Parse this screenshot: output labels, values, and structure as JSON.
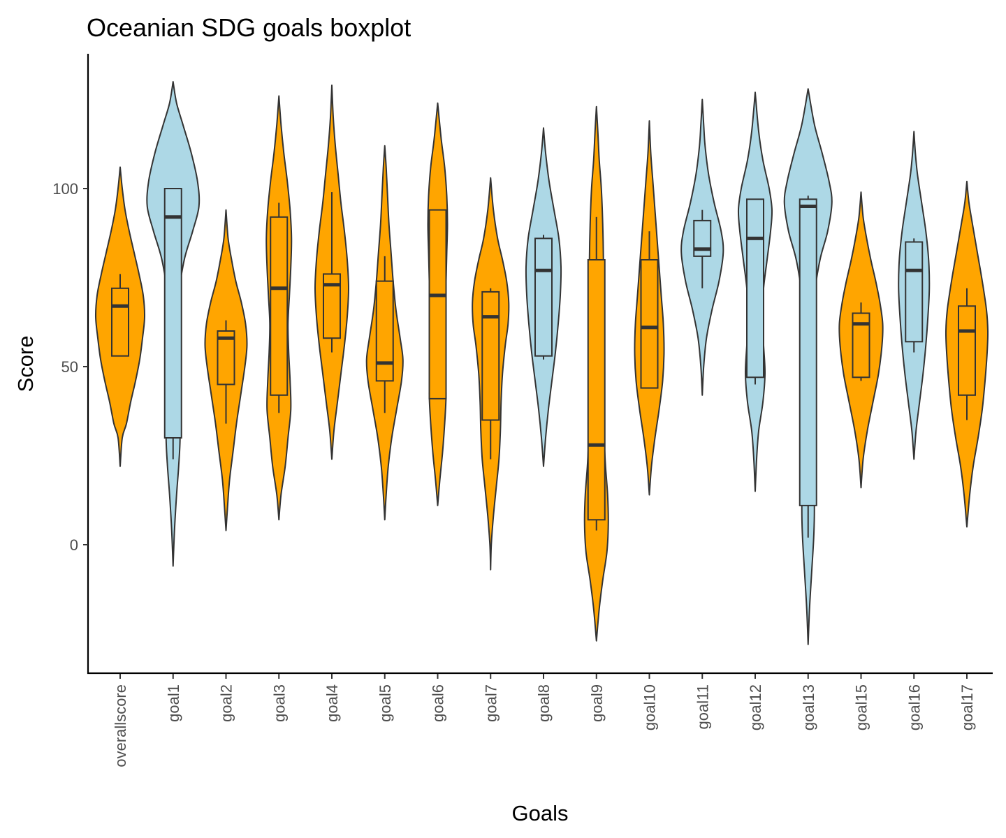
{
  "chart_data": {
    "type": "violin",
    "title": "Oceanian SDG goals boxplot",
    "xlabel": "Goals",
    "ylabel": "Score",
    "yticks": [
      0,
      50,
      100
    ],
    "ylim": [
      -35,
      138
    ],
    "colors": {
      "orange": "#FFA500",
      "lightblue": "#ADD8E6",
      "outline": "#333333"
    },
    "categories": [
      {
        "name": "overallscore",
        "color": "orange",
        "violin_range": [
          22,
          106
        ],
        "density": [
          [
            22,
            0
          ],
          [
            30,
            3
          ],
          [
            34,
            9
          ],
          [
            40,
            15
          ],
          [
            46,
            22
          ],
          [
            52,
            28
          ],
          [
            58,
            32
          ],
          [
            64,
            35
          ],
          [
            70,
            33
          ],
          [
            76,
            27
          ],
          [
            82,
            20
          ],
          [
            88,
            13
          ],
          [
            94,
            7
          ],
          [
            100,
            3
          ],
          [
            106,
            0
          ]
        ],
        "box": {
          "q1": 53,
          "median": 67,
          "q3": 72,
          "whisker_low": 53,
          "whisker_high": 76
        }
      },
      {
        "name": "goal1",
        "color": "lightblue",
        "violin_range": [
          -6,
          130
        ],
        "density": [
          [
            -6,
            0
          ],
          [
            4,
            2
          ],
          [
            14,
            5
          ],
          [
            22,
            8
          ],
          [
            30,
            10
          ],
          [
            40,
            9
          ],
          [
            50,
            7
          ],
          [
            60,
            6
          ],
          [
            70,
            8
          ],
          [
            80,
            16
          ],
          [
            88,
            28
          ],
          [
            95,
            37
          ],
          [
            102,
            35
          ],
          [
            110,
            26
          ],
          [
            118,
            14
          ],
          [
            124,
            5
          ],
          [
            130,
            0
          ]
        ],
        "box": {
          "q1": 30,
          "median": 92,
          "q3": 100,
          "whisker_low": 24,
          "whisker_high": 100
        }
      },
      {
        "name": "goal2",
        "color": "orange",
        "violin_range": [
          4,
          94
        ],
        "density": [
          [
            4,
            0
          ],
          [
            10,
            2
          ],
          [
            18,
            5
          ],
          [
            26,
            10
          ],
          [
            34,
            15
          ],
          [
            42,
            21
          ],
          [
            50,
            27
          ],
          [
            56,
            30
          ],
          [
            62,
            28
          ],
          [
            68,
            22
          ],
          [
            74,
            14
          ],
          [
            80,
            8
          ],
          [
            86,
            3
          ],
          [
            94,
            0
          ]
        ],
        "box": {
          "q1": 45,
          "median": 58,
          "q3": 60,
          "whisker_low": 34,
          "whisker_high": 63
        }
      },
      {
        "name": "goal3",
        "color": "orange",
        "violin_range": [
          7,
          126
        ],
        "density": [
          [
            7,
            0
          ],
          [
            14,
            3
          ],
          [
            22,
            9
          ],
          [
            30,
            13
          ],
          [
            38,
            17
          ],
          [
            46,
            16
          ],
          [
            54,
            14
          ],
          [
            62,
            13
          ],
          [
            70,
            15
          ],
          [
            78,
            17
          ],
          [
            86,
            18
          ],
          [
            94,
            16
          ],
          [
            102,
            12
          ],
          [
            110,
            7
          ],
          [
            118,
            3
          ],
          [
            126,
            0
          ]
        ],
        "box": {
          "q1": 42,
          "median": 72,
          "q3": 92,
          "whisker_low": 37,
          "whisker_high": 96
        }
      },
      {
        "name": "goal4",
        "color": "orange",
        "violin_range": [
          24,
          129
        ],
        "density": [
          [
            24,
            0
          ],
          [
            32,
            3
          ],
          [
            40,
            8
          ],
          [
            48,
            13
          ],
          [
            56,
            18
          ],
          [
            64,
            22
          ],
          [
            72,
            24
          ],
          [
            80,
            22
          ],
          [
            88,
            18
          ],
          [
            96,
            13
          ],
          [
            104,
            9
          ],
          [
            112,
            5
          ],
          [
            120,
            2
          ],
          [
            129,
            0
          ]
        ],
        "box": {
          "q1": 58,
          "median": 73,
          "q3": 76,
          "whisker_low": 54,
          "whisker_high": 99
        }
      },
      {
        "name": "goal5",
        "color": "orange",
        "violin_range": [
          7,
          112
        ],
        "density": [
          [
            7,
            0
          ],
          [
            14,
            2
          ],
          [
            22,
            5
          ],
          [
            30,
            10
          ],
          [
            38,
            17
          ],
          [
            46,
            24
          ],
          [
            52,
            26
          ],
          [
            58,
            22
          ],
          [
            66,
            16
          ],
          [
            74,
            12
          ],
          [
            82,
            9
          ],
          [
            90,
            6
          ],
          [
            98,
            4
          ],
          [
            106,
            2
          ],
          [
            112,
            0
          ]
        ],
        "box": {
          "q1": 46,
          "median": 51,
          "q3": 74,
          "whisker_low": 37,
          "whisker_high": 81
        }
      },
      {
        "name": "goal6",
        "color": "orange",
        "violin_range": [
          11,
          124
        ],
        "density": [
          [
            11,
            0
          ],
          [
            18,
            3
          ],
          [
            26,
            7
          ],
          [
            34,
            10
          ],
          [
            42,
            12
          ],
          [
            50,
            11
          ],
          [
            58,
            10
          ],
          [
            66,
            11
          ],
          [
            74,
            12
          ],
          [
            82,
            13
          ],
          [
            90,
            14
          ],
          [
            98,
            13
          ],
          [
            106,
            10
          ],
          [
            114,
            5
          ],
          [
            124,
            0
          ]
        ],
        "box": {
          "q1": 41,
          "median": 70,
          "q3": 94,
          "whisker_low": 41,
          "whisker_high": 94
        }
      },
      {
        "name": "goal7",
        "color": "orange",
        "violin_range": [
          -7,
          103
        ],
        "density": [
          [
            -7,
            0
          ],
          [
            0,
            1
          ],
          [
            8,
            4
          ],
          [
            16,
            8
          ],
          [
            24,
            12
          ],
          [
            32,
            14
          ],
          [
            40,
            15
          ],
          [
            48,
            17
          ],
          [
            56,
            21
          ],
          [
            62,
            25
          ],
          [
            68,
            26
          ],
          [
            74,
            23
          ],
          [
            80,
            17
          ],
          [
            86,
            10
          ],
          [
            94,
            4
          ],
          [
            103,
            0
          ]
        ],
        "box": {
          "q1": 35,
          "median": 64,
          "q3": 71,
          "whisker_low": 24,
          "whisker_high": 72
        }
      },
      {
        "name": "goal8",
        "color": "lightblue",
        "violin_range": [
          22,
          117
        ],
        "density": [
          [
            22,
            0
          ],
          [
            30,
            3
          ],
          [
            38,
            7
          ],
          [
            46,
            12
          ],
          [
            54,
            17
          ],
          [
            62,
            21
          ],
          [
            70,
            24
          ],
          [
            78,
            25
          ],
          [
            86,
            22
          ],
          [
            94,
            15
          ],
          [
            102,
            8
          ],
          [
            110,
            3
          ],
          [
            117,
            0
          ]
        ],
        "box": {
          "q1": 53,
          "median": 77,
          "q3": 86,
          "whisker_low": 52,
          "whisker_high": 87
        }
      },
      {
        "name": "goal9",
        "color": "orange",
        "violin_range": [
          -27,
          123
        ],
        "density": [
          [
            -27,
            0
          ],
          [
            -18,
            4
          ],
          [
            -10,
            9
          ],
          [
            -2,
            15
          ],
          [
            6,
            17
          ],
          [
            14,
            16
          ],
          [
            22,
            13
          ],
          [
            30,
            11
          ],
          [
            40,
            10
          ],
          [
            50,
            10
          ],
          [
            60,
            10
          ],
          [
            70,
            10
          ],
          [
            80,
            10
          ],
          [
            90,
            9
          ],
          [
            100,
            7
          ],
          [
            108,
            4
          ],
          [
            116,
            2
          ],
          [
            123,
            0
          ]
        ],
        "box": {
          "q1": 7,
          "median": 28,
          "q3": 80,
          "whisker_low": 4,
          "whisker_high": 92
        }
      },
      {
        "name": "goal10",
        "color": "orange",
        "violin_range": [
          14,
          119
        ],
        "density": [
          [
            14,
            0
          ],
          [
            22,
            3
          ],
          [
            30,
            8
          ],
          [
            38,
            14
          ],
          [
            46,
            19
          ],
          [
            54,
            21
          ],
          [
            62,
            20
          ],
          [
            70,
            17
          ],
          [
            78,
            14
          ],
          [
            86,
            11
          ],
          [
            94,
            8
          ],
          [
            102,
            5
          ],
          [
            110,
            2
          ],
          [
            119,
            0
          ]
        ],
        "box": {
          "q1": 44,
          "median": 61,
          "q3": 80,
          "whisker_low": 44,
          "whisker_high": 88
        }
      },
      {
        "name": "goal11",
        "color": "lightblue",
        "violin_range": [
          42,
          125
        ],
        "density": [
          [
            42,
            0
          ],
          [
            50,
            2
          ],
          [
            58,
            6
          ],
          [
            66,
            14
          ],
          [
            74,
            24
          ],
          [
            82,
            30
          ],
          [
            88,
            27
          ],
          [
            96,
            17
          ],
          [
            104,
            9
          ],
          [
            112,
            4
          ],
          [
            118,
            2
          ],
          [
            125,
            0
          ]
        ],
        "box": {
          "q1": 81,
          "median": 83,
          "q3": 91,
          "whisker_low": 72,
          "whisker_high": 94
        }
      },
      {
        "name": "goal12",
        "color": "lightblue",
        "violin_range": [
          15,
          127
        ],
        "density": [
          [
            15,
            0
          ],
          [
            24,
            2
          ],
          [
            32,
            5
          ],
          [
            40,
            11
          ],
          [
            48,
            14
          ],
          [
            56,
            12
          ],
          [
            64,
            10
          ],
          [
            72,
            12
          ],
          [
            80,
            17
          ],
          [
            88,
            22
          ],
          [
            94,
            24
          ],
          [
            100,
            20
          ],
          [
            108,
            11
          ],
          [
            116,
            5
          ],
          [
            127,
            0
          ]
        ],
        "box": {
          "q1": 47,
          "median": 86,
          "q3": 97,
          "whisker_low": 45,
          "whisker_high": 97
        }
      },
      {
        "name": "goal13",
        "color": "lightblue",
        "violin_range": [
          -28,
          128
        ],
        "density": [
          [
            -28,
            0
          ],
          [
            -18,
            2
          ],
          [
            -8,
            5
          ],
          [
            2,
            8
          ],
          [
            10,
            9
          ],
          [
            20,
            8
          ],
          [
            30,
            6
          ],
          [
            40,
            6
          ],
          [
            50,
            6
          ],
          [
            60,
            7
          ],
          [
            70,
            9
          ],
          [
            80,
            17
          ],
          [
            88,
            28
          ],
          [
            96,
            34
          ],
          [
            102,
            30
          ],
          [
            110,
            20
          ],
          [
            118,
            9
          ],
          [
            128,
            0
          ]
        ],
        "box": {
          "q1": 11,
          "median": 95,
          "q3": 97,
          "whisker_low": 2,
          "whisker_high": 98
        }
      },
      {
        "name": "goal15",
        "color": "orange",
        "violin_range": [
          16,
          99
        ],
        "density": [
          [
            16,
            0
          ],
          [
            24,
            3
          ],
          [
            32,
            9
          ],
          [
            40,
            17
          ],
          [
            48,
            25
          ],
          [
            56,
            30
          ],
          [
            62,
            31
          ],
          [
            68,
            27
          ],
          [
            74,
            21
          ],
          [
            80,
            14
          ],
          [
            86,
            8
          ],
          [
            92,
            3
          ],
          [
            99,
            0
          ]
        ],
        "box": {
          "q1": 47,
          "median": 62,
          "q3": 65,
          "whisker_low": 46,
          "whisker_high": 68
        }
      },
      {
        "name": "goal16",
        "color": "lightblue",
        "violin_range": [
          24,
          116
        ],
        "density": [
          [
            24,
            0
          ],
          [
            32,
            3
          ],
          [
            40,
            8
          ],
          [
            48,
            13
          ],
          [
            56,
            17
          ],
          [
            64,
            20
          ],
          [
            72,
            22
          ],
          [
            80,
            21
          ],
          [
            88,
            17
          ],
          [
            96,
            11
          ],
          [
            104,
            5
          ],
          [
            110,
            2
          ],
          [
            116,
            0
          ]
        ],
        "box": {
          "q1": 57,
          "median": 77,
          "q3": 85,
          "whisker_low": 54,
          "whisker_high": 86
        }
      },
      {
        "name": "goal17",
        "color": "orange",
        "violin_range": [
          5,
          102
        ],
        "density": [
          [
            5,
            0
          ],
          [
            14,
            4
          ],
          [
            22,
            9
          ],
          [
            30,
            16
          ],
          [
            38,
            22
          ],
          [
            46,
            26
          ],
          [
            54,
            29
          ],
          [
            60,
            30
          ],
          [
            66,
            28
          ],
          [
            74,
            22
          ],
          [
            82,
            15
          ],
          [
            90,
            8
          ],
          [
            96,
            3
          ],
          [
            102,
            0
          ]
        ],
        "box": {
          "q1": 42,
          "median": 60,
          "q3": 67,
          "whisker_low": 35,
          "whisker_high": 72
        }
      }
    ]
  }
}
